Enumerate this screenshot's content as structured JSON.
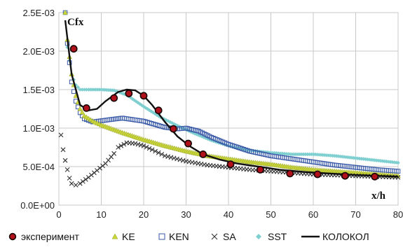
{
  "chart_data": {
    "type": "scatter",
    "title": "",
    "xlabel": "x/h",
    "ylabel": "Cfx",
    "xlim": [
      0,
      80
    ],
    "ylim": [
      0,
      0.0025
    ],
    "x_ticks": [
      "0",
      "10",
      "20",
      "30",
      "40",
      "50",
      "60",
      "70",
      "80"
    ],
    "y_ticks": [
      "0.0E+00",
      "5.0E-04",
      "1.0E-03",
      "1.5E-03",
      "2.0E-03",
      "2.5E-03"
    ],
    "grid": true,
    "legend_position": "bottom",
    "series": [
      {
        "name": "эксперимент",
        "marker": "filled-circle",
        "color": "#2a0a0a",
        "points": [
          [
            3.5,
            0.00203
          ],
          [
            6.5,
            0.00126
          ],
          [
            13,
            0.00139
          ],
          [
            16.5,
            0.00145
          ],
          [
            20,
            0.00142
          ],
          [
            23.5,
            0.00123
          ],
          [
            27,
            0.00099
          ],
          [
            30.5,
            0.0008
          ],
          [
            34,
            0.00066
          ],
          [
            40.5,
            0.00053
          ],
          [
            47.5,
            0.00046
          ],
          [
            54.5,
            0.00041
          ],
          [
            61,
            0.0004
          ],
          [
            67.5,
            0.00038
          ],
          [
            74.5,
            0.00037
          ]
        ]
      },
      {
        "name": "KE",
        "marker": "triangle",
        "color": "#c8d43a",
        "points": [
          [
            1.5,
            0.0025
          ],
          [
            2,
            0.00215
          ],
          [
            3,
            0.0017
          ],
          [
            4,
            0.00142
          ],
          [
            5,
            0.00125
          ],
          [
            6,
            0.00116
          ],
          [
            8,
            0.00109
          ],
          [
            10,
            0.00104
          ],
          [
            15,
            0.00094
          ],
          [
            20,
            0.00085
          ],
          [
            25,
            0.00077
          ],
          [
            30,
            0.0007
          ],
          [
            35,
            0.00064
          ],
          [
            40,
            0.0006
          ],
          [
            45,
            0.00056
          ],
          [
            50,
            0.00053
          ],
          [
            55,
            0.00049
          ],
          [
            60,
            0.00046
          ],
          [
            65,
            0.00044
          ],
          [
            70,
            0.00042
          ],
          [
            75,
            0.0004
          ],
          [
            80,
            0.00038
          ]
        ]
      },
      {
        "name": "KEN",
        "marker": "open-square",
        "color": "#3a5aa8",
        "points": [
          [
            1.5,
            0.0025
          ],
          [
            2,
            0.0021
          ],
          [
            3,
            0.0016
          ],
          [
            4,
            0.00135
          ],
          [
            5,
            0.0012
          ],
          [
            6,
            0.00112
          ],
          [
            8,
            0.00108
          ],
          [
            12,
            0.00111
          ],
          [
            15,
            0.00113
          ],
          [
            20,
            0.00109
          ],
          [
            25,
            0.00101
          ],
          [
            28,
            0.00099
          ],
          [
            30,
            0.001
          ],
          [
            33,
            0.00096
          ],
          [
            36,
            0.00088
          ],
          [
            40,
            0.00079
          ],
          [
            45,
            0.0007
          ],
          [
            50,
            0.00064
          ],
          [
            55,
            0.0006
          ],
          [
            60,
            0.00056
          ],
          [
            65,
            0.00052
          ],
          [
            70,
            0.00049
          ],
          [
            75,
            0.00046
          ],
          [
            80,
            0.00044
          ]
        ]
      },
      {
        "name": "SA",
        "marker": "x",
        "color": "#333333",
        "points": [
          [
            0.5,
            0.00091
          ],
          [
            1,
            0.00072
          ],
          [
            1.5,
            0.00058
          ],
          [
            2,
            0.00046
          ],
          [
            2.5,
            0.00035
          ],
          [
            3,
            0.00028
          ],
          [
            4,
            0.00026
          ],
          [
            5,
            0.00028
          ],
          [
            7,
            0.00036
          ],
          [
            9,
            0.00045
          ],
          [
            11,
            0.00054
          ],
          [
            13,
            0.00067
          ],
          [
            14,
            0.00075
          ],
          [
            16,
            0.00081
          ],
          [
            18,
            0.0008
          ],
          [
            20,
            0.00077
          ],
          [
            22,
            0.00072
          ],
          [
            25,
            0.00064
          ],
          [
            30,
            0.00057
          ],
          [
            35,
            0.00052
          ],
          [
            40,
            0.00049
          ],
          [
            45,
            0.00046
          ],
          [
            50,
            0.00044
          ],
          [
            55,
            0.00042
          ],
          [
            60,
            0.0004
          ],
          [
            65,
            0.00039
          ],
          [
            70,
            0.00038
          ],
          [
            75,
            0.00037
          ],
          [
            80,
            0.00036
          ]
        ]
      },
      {
        "name": "SST",
        "marker": "diamond",
        "color": "#7fcfd0",
        "points": [
          [
            1.5,
            0.0025
          ],
          [
            2,
            0.00205
          ],
          [
            3,
            0.0017
          ],
          [
            4,
            0.00156
          ],
          [
            5,
            0.0015
          ],
          [
            7,
            0.0015
          ],
          [
            10,
            0.0015
          ],
          [
            13,
            0.00149
          ],
          [
            16,
            0.00143
          ],
          [
            20,
            0.00128
          ],
          [
            24,
            0.00114
          ],
          [
            28,
            0.00103
          ],
          [
            32,
            0.00093
          ],
          [
            36,
            0.00084
          ],
          [
            40,
            0.00077
          ],
          [
            45,
            0.00071
          ],
          [
            50,
            0.00068
          ],
          [
            55,
            0.00066
          ],
          [
            60,
            0.00066
          ],
          [
            65,
            0.00064
          ],
          [
            70,
            0.00061
          ],
          [
            75,
            0.00058
          ],
          [
            80,
            0.00055
          ]
        ]
      },
      {
        "name": "КОЛОКОЛ",
        "marker": "line",
        "color": "#111111",
        "points": [
          [
            1.5,
            0.0024
          ],
          [
            3,
            0.0017
          ],
          [
            5,
            0.0013
          ],
          [
            7,
            0.00123
          ],
          [
            9,
            0.00125
          ],
          [
            11,
            0.00135
          ],
          [
            14,
            0.00147
          ],
          [
            16,
            0.0015
          ],
          [
            18,
            0.00149
          ],
          [
            20,
            0.00142
          ],
          [
            22,
            0.0013
          ],
          [
            25,
            0.00108
          ],
          [
            28,
            0.00089
          ],
          [
            31,
            0.00076
          ],
          [
            34,
            0.00066
          ],
          [
            38,
            0.00059
          ],
          [
            42,
            0.00054
          ],
          [
            47,
            0.0005
          ],
          [
            52,
            0.00046
          ],
          [
            58,
            0.00043
          ],
          [
            64,
            0.00041
          ],
          [
            70,
            0.00039
          ],
          [
            75,
            0.00038
          ],
          [
            80,
            0.00037
          ]
        ]
      }
    ]
  }
}
